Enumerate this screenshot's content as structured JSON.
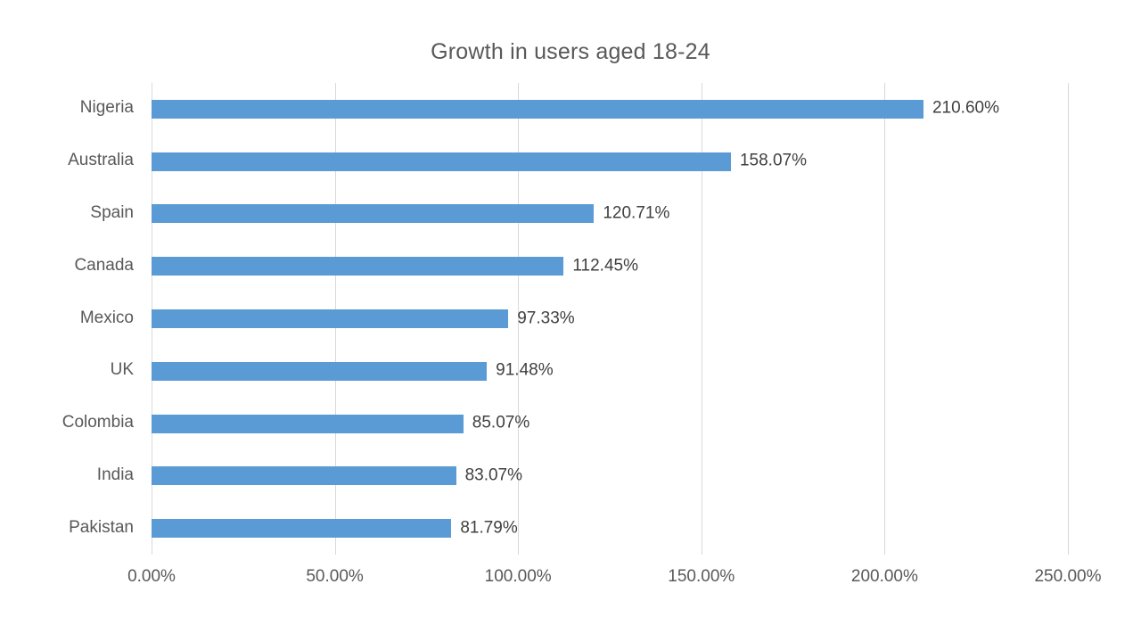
{
  "chart_data": {
    "type": "bar",
    "orientation": "horizontal",
    "title": "Growth in users aged 18-24",
    "categories": [
      "Nigeria",
      "Australia",
      "Spain",
      "Canada",
      "Mexico",
      "UK",
      "Colombia",
      "India",
      "Pakistan"
    ],
    "values": [
      210.6,
      158.07,
      120.71,
      112.45,
      97.33,
      91.48,
      85.07,
      83.07,
      81.79
    ],
    "value_labels": [
      "210.60%",
      "158.07%",
      "120.71%",
      "112.45%",
      "97.33%",
      "91.48%",
      "85.07%",
      "83.07%",
      "81.79%"
    ],
    "xlabel": "",
    "ylabel": "",
    "xlim": [
      0,
      250
    ],
    "x_tick_values": [
      0,
      50,
      100,
      150,
      200,
      250
    ],
    "x_tick_labels": [
      "0.00%",
      "50.00%",
      "100.00%",
      "150.00%",
      "200.00%",
      "250.00%"
    ],
    "grid": true,
    "legend_position": "none",
    "colors": {
      "bar": "#5B9BD5",
      "gridline": "#D9D9D9",
      "title_text": "#595959",
      "axis_text": "#595959",
      "data_label_text": "#404040",
      "background": "#FFFFFF"
    }
  }
}
